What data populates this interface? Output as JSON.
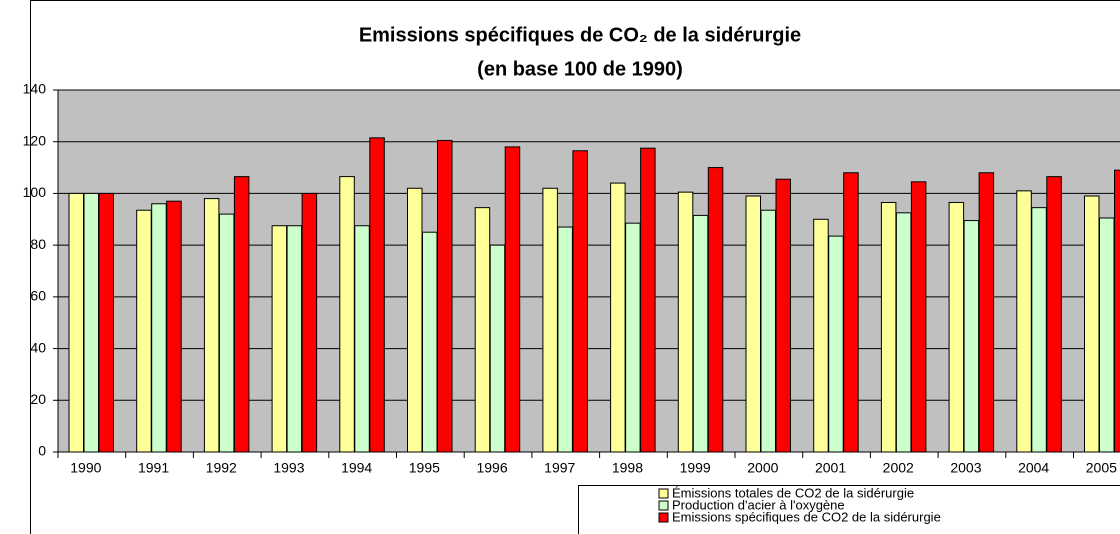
{
  "chart_data": {
    "type": "bar",
    "title": "Emissions spécifiques de CO₂ de la sidérurgie",
    "subtitle": "(en base 100 de 1990)",
    "categories": [
      "1990",
      "1991",
      "1992",
      "1993",
      "1994",
      "1995",
      "1996",
      "1997",
      "1998",
      "1999",
      "2000",
      "2001",
      "2002",
      "2003",
      "2004",
      "2005"
    ],
    "series": [
      {
        "name": "Émissions totales de CO2 de la sidérurgie",
        "color": "#ffff99",
        "values": [
          100,
          93.5,
          98,
          87.5,
          106.5,
          102,
          94.5,
          102,
          104,
          100.5,
          99,
          90,
          96.5,
          96.5,
          101,
          99
        ]
      },
      {
        "name": "Production d'acier à l'oxygène",
        "color": "#ccffcc",
        "values": [
          100,
          96,
          92,
          87.5,
          87.5,
          85,
          80,
          87,
          88.5,
          91.5,
          93.5,
          83.5,
          92.5,
          89.5,
          94.5,
          90.5
        ]
      },
      {
        "name": "Emissions spécifiques de CO2 de la sidérurgie",
        "color": "#ff0000",
        "values": [
          100,
          97,
          106.5,
          100,
          121.5,
          120.5,
          118,
          116.5,
          117.5,
          110,
          105.5,
          108,
          104.5,
          108,
          106.5,
          109
        ]
      }
    ],
    "ylim": [
      0,
      140
    ],
    "yticks": [
      0,
      20,
      40,
      60,
      80,
      100,
      120,
      140
    ],
    "grid": true,
    "plot_background": "#c0c0c0",
    "legend": "bottom-right"
  }
}
